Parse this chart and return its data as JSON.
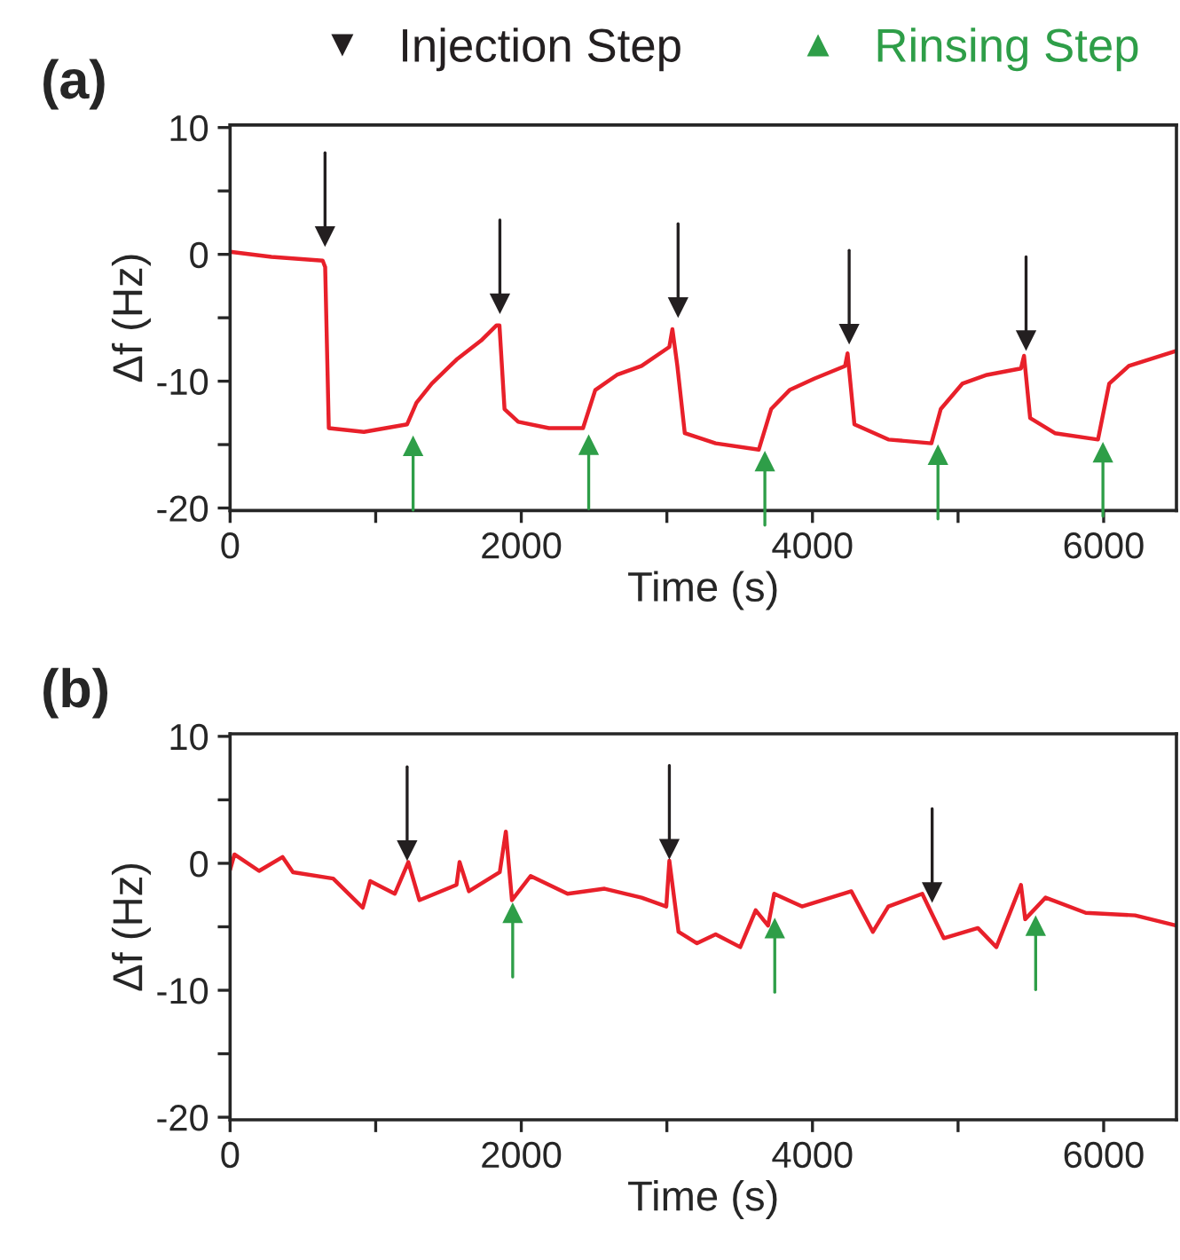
{
  "chart_data": [
    {
      "type": "line",
      "annotations": [
        "(a)"
      ],
      "xlabel": "Time (s)",
      "ylabel": "Δf (Hz)",
      "xlim": [
        0,
        6500
      ],
      "ylim": [
        -20.2,
        10.2
      ],
      "xticks": [
        0,
        {
          "value": 1000,
          "label": null
        },
        2000,
        {
          "value": 3000,
          "label": null
        },
        4000,
        {
          "value": 5000,
          "label": null
        },
        6000
      ],
      "yticks": [
        -20,
        {
          "value": -15,
          "label": null
        },
        -10,
        {
          "value": -5,
          "label": null
        },
        0,
        {
          "value": 5,
          "label": null
        },
        10
      ],
      "grid": false,
      "legend": "top",
      "series": [
        {
          "color": "#e8202a",
          "x": [
            0,
            284,
            636,
            653,
            678,
            919,
            1216,
            1280,
            1385,
            1555,
            1724,
            1830,
            1850,
            1885,
            1979,
            2190,
            2424,
            2508,
            2657,
            2826,
            3017,
            3038,
            3072,
            3123,
            3335,
            3631,
            3716,
            3843,
            4012,
            4224,
            4241,
            4288,
            4521,
            4817,
            4881,
            5029,
            5199,
            5432,
            5453,
            5495,
            5665,
            5961,
            6038,
            6173,
            6500
          ],
          "values": [
            0.2,
            -0.2,
            -0.5,
            -1,
            -13.7,
            -14,
            -13.4,
            -11.7,
            -10.2,
            -8.3,
            -6.8,
            -5.6,
            -5.6,
            -12.2,
            -13.2,
            -13.7,
            -13.7,
            -10.7,
            -9.5,
            -8.8,
            -7.3,
            -5.9,
            -8.8,
            -14.1,
            -14.9,
            -15.4,
            -12.2,
            -10.7,
            -9.8,
            -8.8,
            -7.8,
            -13.4,
            -14.6,
            -14.9,
            -12.2,
            -10.2,
            -9.5,
            -9.0,
            -8.0,
            -12.9,
            -14.1,
            -14.6,
            -10.2,
            -8.8,
            -7.6
          ]
        },
        {
          "name": "Injection Step",
          "type": "scatter",
          "marker": "triangle",
          "color": "#231f20",
          "x": [
            652,
            1853,
            3077,
            4252,
            5467
          ],
          "values": [
            1.4,
            -3.9,
            -4.2,
            -6.3,
            -6.8
          ]
        },
        {
          "name": "Rinsing Step",
          "type": "scatter",
          "marker": "triangle",
          "color": "#2e9e48",
          "x": [
            1257,
            2463,
            3673,
            4862,
            5995
          ],
          "values": [
            -15.1,
            -15.0,
            -16.3,
            -15.8,
            -15.6
          ]
        }
      ]
    },
    {
      "type": "line",
      "annotations": [
        "(b)"
      ],
      "xlabel": "Time (s)",
      "ylabel": "Δf (Hz)",
      "xlim": [
        0,
        6500
      ],
      "ylim": [
        -20.2,
        10.2
      ],
      "xticks": [
        0,
        {
          "value": 1000,
          "label": null
        },
        2000,
        {
          "value": 3000,
          "label": null
        },
        4000,
        {
          "value": 5000,
          "label": null
        },
        6000
      ],
      "yticks": [
        -20,
        {
          "value": -15,
          "label": null
        },
        -10,
        {
          "value": -5,
          "label": null
        },
        0,
        {
          "value": 5,
          "label": null
        },
        10
      ],
      "grid": false,
      "series": [
        {
          "color": "#e8202a",
          "x": [
            0,
            30,
            199,
            360,
            432,
            708,
            911,
            962,
            1131,
            1224,
            1300,
            1555,
            1576,
            1640,
            1852,
            1894,
            1936,
            2064,
            2318,
            2572,
            2826,
            2996,
            3017,
            3080,
            3207,
            3335,
            3504,
            3610,
            3695,
            3737,
            3928,
            4267,
            4415,
            4521,
            4754,
            4817,
            4902,
            5136,
            5263,
            5432,
            5461,
            5601,
            5877,
            6216,
            6500
          ],
          "values": [
            -0.5,
            0.7,
            -0.6,
            0.5,
            -0.7,
            -1.2,
            -3.5,
            -1.4,
            -2.4,
            0.1,
            -2.9,
            -1.7,
            0.1,
            -2.2,
            -0.7,
            2.5,
            -2.9,
            -1.0,
            -2.4,
            -2.0,
            -2.7,
            -3.4,
            0.2,
            -5.4,
            -6.3,
            -5.6,
            -6.6,
            -3.7,
            -4.9,
            -2.4,
            -3.4,
            -2.2,
            -5.4,
            -3.4,
            -2.4,
            -3.9,
            -5.9,
            -5.1,
            -6.6,
            -1.7,
            -4.4,
            -2.7,
            -3.9,
            -4.1,
            -4.9
          ]
        },
        {
          "type": "scatter",
          "marker": "triangle",
          "color": "#231f20",
          "x": [
            1216,
            3017,
            4822
          ],
          "values": [
            1.0,
            1.1,
            -2.3
          ]
        },
        {
          "type": "scatter",
          "marker": "triangle",
          "color": "#2e9e48",
          "x": [
            1941,
            3741,
            5533
          ],
          "values": [
            -3.9,
            -5.1,
            -4.9
          ]
        }
      ]
    }
  ]
}
